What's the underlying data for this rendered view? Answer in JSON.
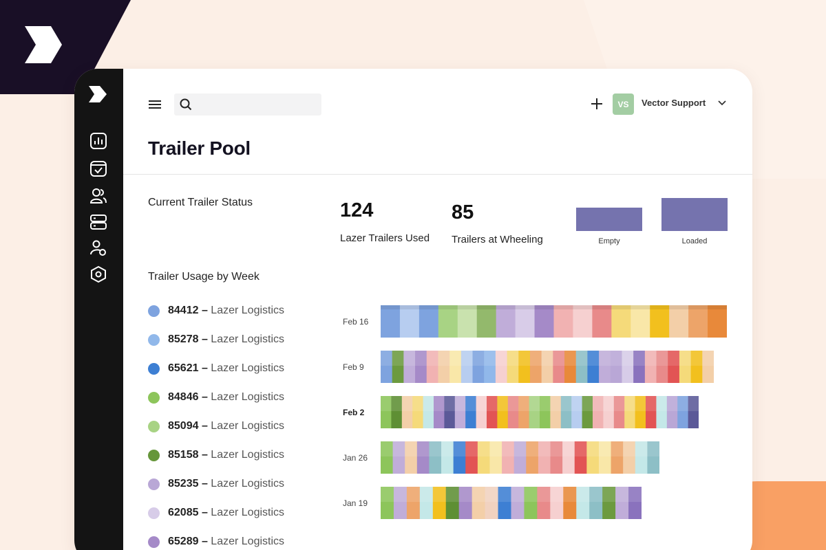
{
  "header": {
    "search_placeholder": "",
    "user_initials": "VS",
    "user_name": "Vector Support"
  },
  "page_title": "Trailer Pool",
  "status": {
    "section_title": "Current Trailer Status",
    "stats": [
      {
        "value": "124",
        "label": "Lazer Trailers Used"
      },
      {
        "value": "85",
        "label": "Trailers at Wheeling"
      }
    ],
    "bars": [
      {
        "label": "Empty"
      },
      {
        "label": "Loaded"
      }
    ]
  },
  "usage": {
    "section_title": "Trailer Usage by Week",
    "legend": [
      {
        "code": "84412",
        "company": "Lazer Logistics",
        "color": "#7ea3df"
      },
      {
        "code": "85278",
        "company": "Lazer Logistics",
        "color": "#91b8ea"
      },
      {
        "code": "65621",
        "company": "Lazer Logistics",
        "color": "#3d7fd3"
      },
      {
        "code": "84846",
        "company": "Lazer Logistics",
        "color": "#8dc55b"
      },
      {
        "code": "85094",
        "company": "Lazer Logistics",
        "color": "#a8d384"
      },
      {
        "code": "85158",
        "company": "Lazer Logistics",
        "color": "#66963a"
      },
      {
        "code": "85235",
        "company": "Lazer Logistics",
        "color": "#b9a7d6"
      },
      {
        "code": "62085",
        "company": "Lazer Logistics",
        "color": "#d7cce8"
      },
      {
        "code": "65289",
        "company": "Lazer Logistics",
        "color": "#a58ac8"
      }
    ],
    "weeks": [
      {
        "label": "Feb 16",
        "bold": false,
        "colors": [
          "#7ea3df",
          "#b7cdf0",
          "#7ea3df",
          "#a8d384",
          "#c9e2ae",
          "#93b96c",
          "#c0add9",
          "#d8cce8",
          "#a58ac8",
          "#f1b2b2",
          "#f6d0d0",
          "#e88a8a",
          "#f5da7a",
          "#f9e7a8",
          "#f2c01e",
          "#f3cfa8",
          "#eda469",
          "#e8893a"
        ]
      },
      {
        "label": "Feb 9",
        "bold": false,
        "colors": [
          "#7ea3df",
          "#6c9a3f",
          "#c0add9",
          "#a58ac8",
          "#f1b2b2",
          "#f3cfa8",
          "#f9e7a8",
          "#b7cdf0",
          "#7ea3df",
          "#91b8ea",
          "#f6d0d0",
          "#f5da7a",
          "#f2c01e",
          "#eda469",
          "#f3cfa8",
          "#e88a8a",
          "#e8893a",
          "#8dbfc6",
          "#3d7fd3",
          "#c0add9",
          "#b9a7d6",
          "#d7cce8",
          "#8a72bd",
          "#f1b2b2",
          "#e88a8a",
          "#e25454",
          "#f5da7a",
          "#f2c01e",
          "#f3cfa8"
        ]
      },
      {
        "label": "Feb 2",
        "bold": true,
        "colors": [
          "#8dc55b",
          "#5e8f34",
          "#f3cfa8",
          "#f5da7a",
          "#c4e8e8",
          "#a58ac8",
          "#5b5998",
          "#c0add9",
          "#3d7fd3",
          "#f6d0d0",
          "#e25454",
          "#f2c01e",
          "#e88a8a",
          "#eda469",
          "#a8d384",
          "#8dc55b",
          "#f3cfa8",
          "#8dbfc6",
          "#b7cdf0",
          "#6c9a3f",
          "#f1b2b2",
          "#f6d0d0",
          "#e88a8a",
          "#f5da7a",
          "#f2c01e",
          "#e25454",
          "#c4e8e8",
          "#b9a7d6",
          "#7ea3df",
          "#5b5998"
        ]
      },
      {
        "label": "Jan 26",
        "bold": false,
        "colors": [
          "#8dc55b",
          "#c0add9",
          "#f3cfa8",
          "#a58ac8",
          "#8dbfc6",
          "#c4e8e8",
          "#3d7fd3",
          "#e25454",
          "#f5da7a",
          "#f9e7a8",
          "#f1b2b2",
          "#c0add9",
          "#eda469",
          "#f1b2b2",
          "#e88a8a",
          "#f6d0d0",
          "#e25454",
          "#f5da7a",
          "#f9e7a8",
          "#eda469",
          "#f3cfa8",
          "#c4e8e8",
          "#8dbfc6"
        ]
      },
      {
        "label": "Jan 19",
        "bold": false,
        "colors": [
          "#8dc55b",
          "#c0add9",
          "#eda469",
          "#c4e8e8",
          "#f2c01e",
          "#5e8f34",
          "#a58ac8",
          "#f3cfa8",
          "#f1d2c0",
          "#3d7fd3",
          "#c0add9",
          "#8dc55b",
          "#e88a8a",
          "#f6d0d0",
          "#e8893a",
          "#c4e8e8",
          "#8dbfc6",
          "#6c9a3f",
          "#c0add9",
          "#8a72bd"
        ]
      }
    ]
  }
}
